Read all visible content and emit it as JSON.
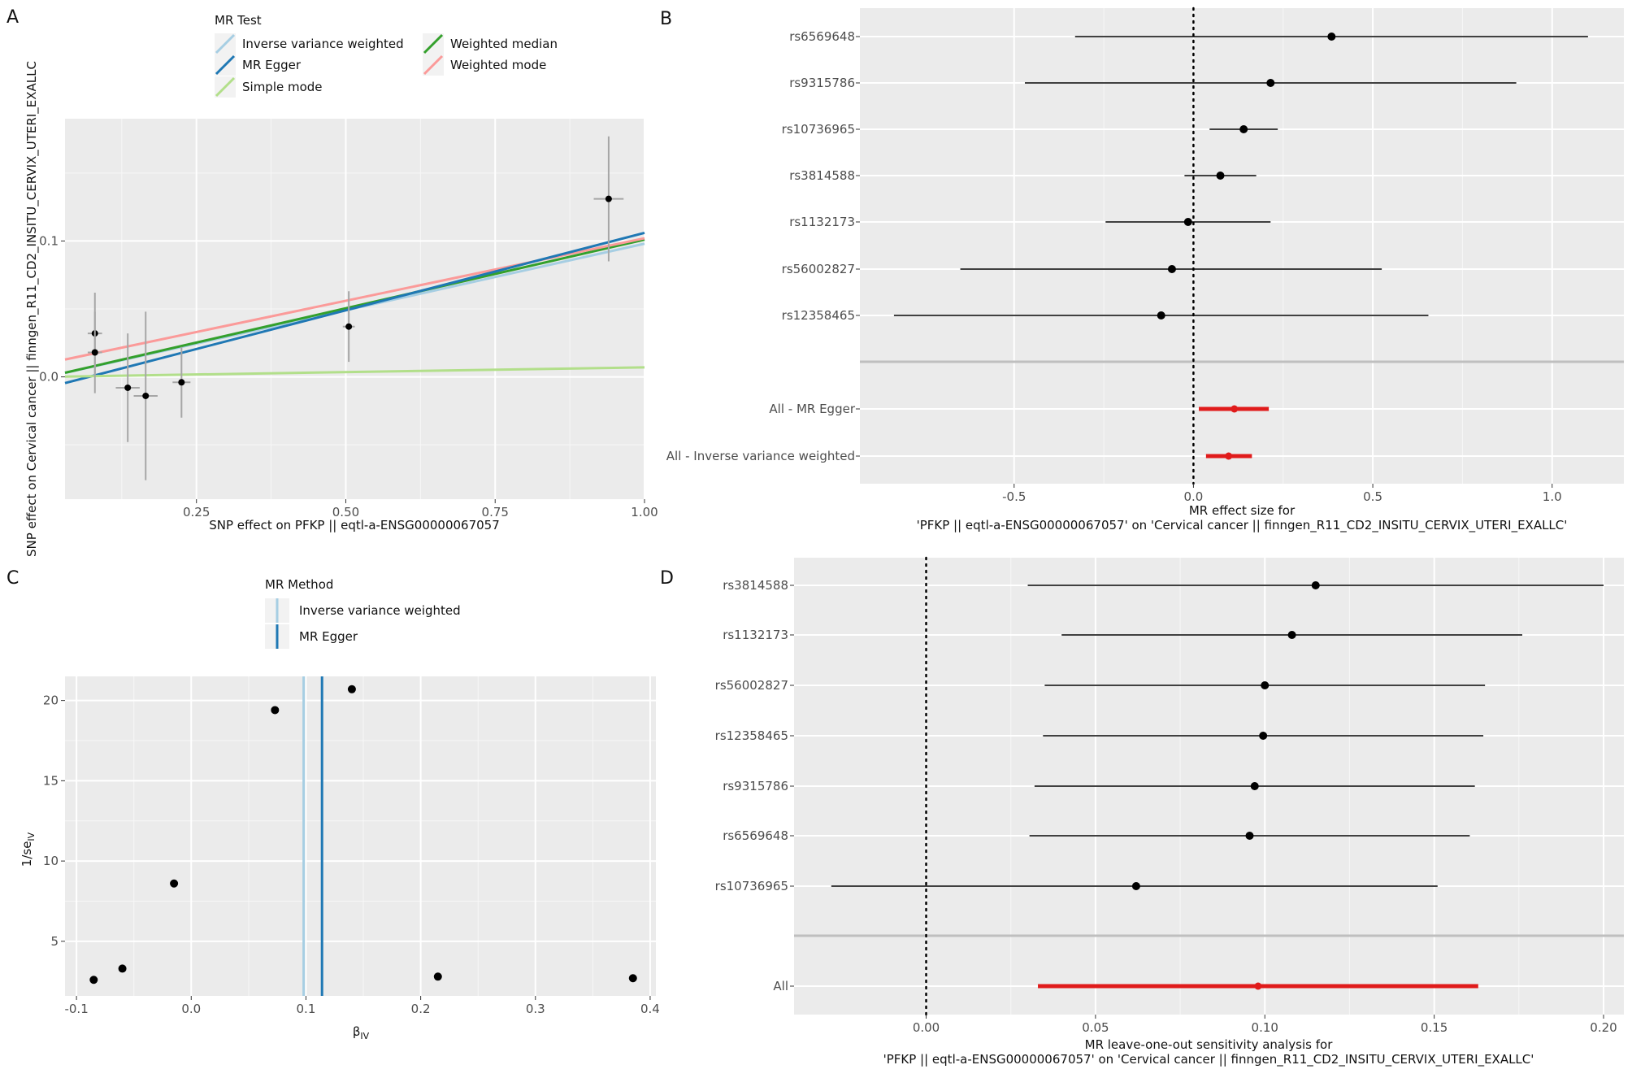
{
  "chart_data": [
    {
      "panel": "A",
      "type": "scatter",
      "xlabel": "SNP effect on PFKP || eqtl-a-ENSG00000067057",
      "ylabel": "SNP effect on Cervical cancer || finngen_R11_CD2_INSITU_CERVIX_UTERI_EXALLC",
      "xlim": [
        0.03,
        1.0
      ],
      "ylim": [
        -0.09,
        0.19
      ],
      "xticks": [
        0.25,
        0.5,
        0.75,
        1.0
      ],
      "xtick_labels": [
        "0.25",
        "0.50",
        "0.75",
        "1.00"
      ],
      "yticks": [
        0.0,
        0.1
      ],
      "ytick_labels": [
        "0.0",
        "0.1"
      ],
      "grid": true,
      "legend": {
        "title": "MR Test",
        "placement": "top",
        "entries": [
          {
            "name": "Inverse variance weighted",
            "color": "#a6cee3"
          },
          {
            "name": "MR Egger",
            "color": "#1f78b4"
          },
          {
            "name": "Simple mode",
            "color": "#b2df8a"
          },
          {
            "name": "Weighted median",
            "color": "#33a02c"
          },
          {
            "name": "Weighted mode",
            "color": "#fb9a99"
          }
        ]
      },
      "points": [
        {
          "x": 0.08,
          "y": 0.032,
          "xerr": 0.012,
          "yerr": 0.03
        },
        {
          "x": 0.08,
          "y": 0.018,
          "xerr": 0.012,
          "yerr": 0.03
        },
        {
          "x": 0.135,
          "y": -0.008,
          "xerr": 0.02,
          "yerr": 0.04
        },
        {
          "x": 0.165,
          "y": -0.014,
          "xerr": 0.02,
          "yerr": 0.062
        },
        {
          "x": 0.225,
          "y": -0.004,
          "xerr": 0.015,
          "yerr": 0.026
        },
        {
          "x": 0.505,
          "y": 0.037,
          "xerr": 0.01,
          "yerr": 0.026
        },
        {
          "x": 0.94,
          "y": 0.131,
          "xerr": 0.025,
          "yerr": 0.046
        }
      ],
      "lines": [
        {
          "name": "Inverse variance weighted",
          "slope": 0.098,
          "intercept": 0.0,
          "color": "#a6cee3"
        },
        {
          "name": "Weighted median",
          "slope": 0.101,
          "intercept": 0.0,
          "color": "#33a02c"
        },
        {
          "name": "Weighted mode",
          "slope": 0.092,
          "intercept": 0.01,
          "color": "#fb9a99"
        },
        {
          "name": "MR Egger",
          "slope": 0.114,
          "intercept": -0.008,
          "color": "#1f78b4"
        },
        {
          "name": "Simple mode",
          "slope": 0.007,
          "intercept": 0.0,
          "color": "#b2df8a"
        }
      ]
    },
    {
      "panel": "B",
      "type": "forest",
      "xlabel": "MR effect size for\n'PFKP || eqtl-a-ENSG00000067057' on 'Cervical cancer || finngen_R11_CD2_INSITU_CERVIX_UTERI_EXALLC'",
      "xlim": [
        -0.93,
        1.2
      ],
      "xticks": [
        -0.5,
        0.0,
        0.5,
        1.0
      ],
      "xtick_labels": [
        "-0.5",
        "0.0",
        "0.5",
        "1.0"
      ],
      "null_line": 0.0,
      "grid": true,
      "rows": [
        {
          "label": "rs6569648",
          "est": 0.385,
          "lo": -0.33,
          "hi": 1.1
        },
        {
          "label": "rs9315786",
          "est": 0.215,
          "lo": -0.47,
          "hi": 0.9
        },
        {
          "label": "rs10736965",
          "est": 0.14,
          "lo": 0.045,
          "hi": 0.235
        },
        {
          "label": "rs3814588",
          "est": 0.075,
          "lo": -0.025,
          "hi": 0.175
        },
        {
          "label": "rs1132173",
          "est": -0.015,
          "lo": -0.245,
          "hi": 0.215
        },
        {
          "label": "rs56002827",
          "est": -0.06,
          "lo": -0.65,
          "hi": 0.525
        },
        {
          "label": "rs12358465",
          "est": -0.09,
          "lo": -0.835,
          "hi": 0.655
        }
      ],
      "summary": [
        {
          "label": "All - MR Egger",
          "est": 0.114,
          "lo": 0.015,
          "hi": 0.21
        },
        {
          "label": "All - Inverse variance weighted",
          "est": 0.098,
          "lo": 0.035,
          "hi": 0.163
        }
      ]
    },
    {
      "panel": "C",
      "type": "scatter",
      "xlabel": "βIV",
      "ylabel": "1/seIV",
      "xlim": [
        -0.11,
        0.405
      ],
      "ylim": [
        1.6,
        21.5
      ],
      "xticks": [
        -0.1,
        0.0,
        0.1,
        0.2,
        0.3,
        0.4
      ],
      "xtick_labels": [
        "-0.1",
        "0.0",
        "0.1",
        "0.2",
        "0.3",
        "0.4"
      ],
      "yticks": [
        5,
        10,
        15,
        20
      ],
      "ytick_labels": [
        "5",
        "10",
        "15",
        "20"
      ],
      "grid": true,
      "legend": {
        "title": "MR Method",
        "placement": "top",
        "entries": [
          {
            "name": "Inverse variance weighted",
            "color": "#a6cee3"
          },
          {
            "name": "MR Egger",
            "color": "#1f78b4"
          }
        ]
      },
      "points": [
        {
          "x": -0.085,
          "y": 2.6
        },
        {
          "x": -0.06,
          "y": 3.3
        },
        {
          "x": -0.015,
          "y": 8.6
        },
        {
          "x": 0.073,
          "y": 19.4
        },
        {
          "x": 0.14,
          "y": 20.7
        },
        {
          "x": 0.215,
          "y": 2.8
        },
        {
          "x": 0.385,
          "y": 2.7
        }
      ],
      "vlines": [
        {
          "name": "Inverse variance weighted",
          "x": 0.098,
          "color": "#a6cee3"
        },
        {
          "name": "MR Egger",
          "x": 0.114,
          "color": "#1f78b4"
        }
      ]
    },
    {
      "panel": "D",
      "type": "forest",
      "xlabel": "MR leave-one-out sensitivity analysis for\n'PFKP || eqtl-a-ENSG00000067057' on 'Cervical cancer || finngen_R11_CD2_INSITU_CERVIX_UTERI_EXALLC'",
      "xlim": [
        -0.039,
        0.206
      ],
      "xticks": [
        0.0,
        0.05,
        0.1,
        0.15,
        0.2
      ],
      "xtick_labels": [
        "0.00",
        "0.05",
        "0.10",
        "0.15",
        "0.20"
      ],
      "null_line": 0.0,
      "grid": true,
      "rows": [
        {
          "label": "rs3814588",
          "est": 0.115,
          "lo": 0.03,
          "hi": 0.2
        },
        {
          "label": "rs1132173",
          "est": 0.108,
          "lo": 0.04,
          "hi": 0.176
        },
        {
          "label": "rs56002827",
          "est": 0.1,
          "lo": 0.035,
          "hi": 0.165
        },
        {
          "label": "rs12358465",
          "est": 0.0995,
          "lo": 0.0345,
          "hi": 0.1645
        },
        {
          "label": "rs9315786",
          "est": 0.097,
          "lo": 0.032,
          "hi": 0.162
        },
        {
          "label": "rs6569648",
          "est": 0.0955,
          "lo": 0.0305,
          "hi": 0.1605
        },
        {
          "label": "rs10736965",
          "est": 0.062,
          "lo": -0.028,
          "hi": 0.151
        }
      ],
      "summary": [
        {
          "label": "All",
          "est": 0.098,
          "lo": 0.033,
          "hi": 0.163
        }
      ]
    }
  ],
  "panel_labels": [
    "A",
    "B",
    "C",
    "D"
  ]
}
